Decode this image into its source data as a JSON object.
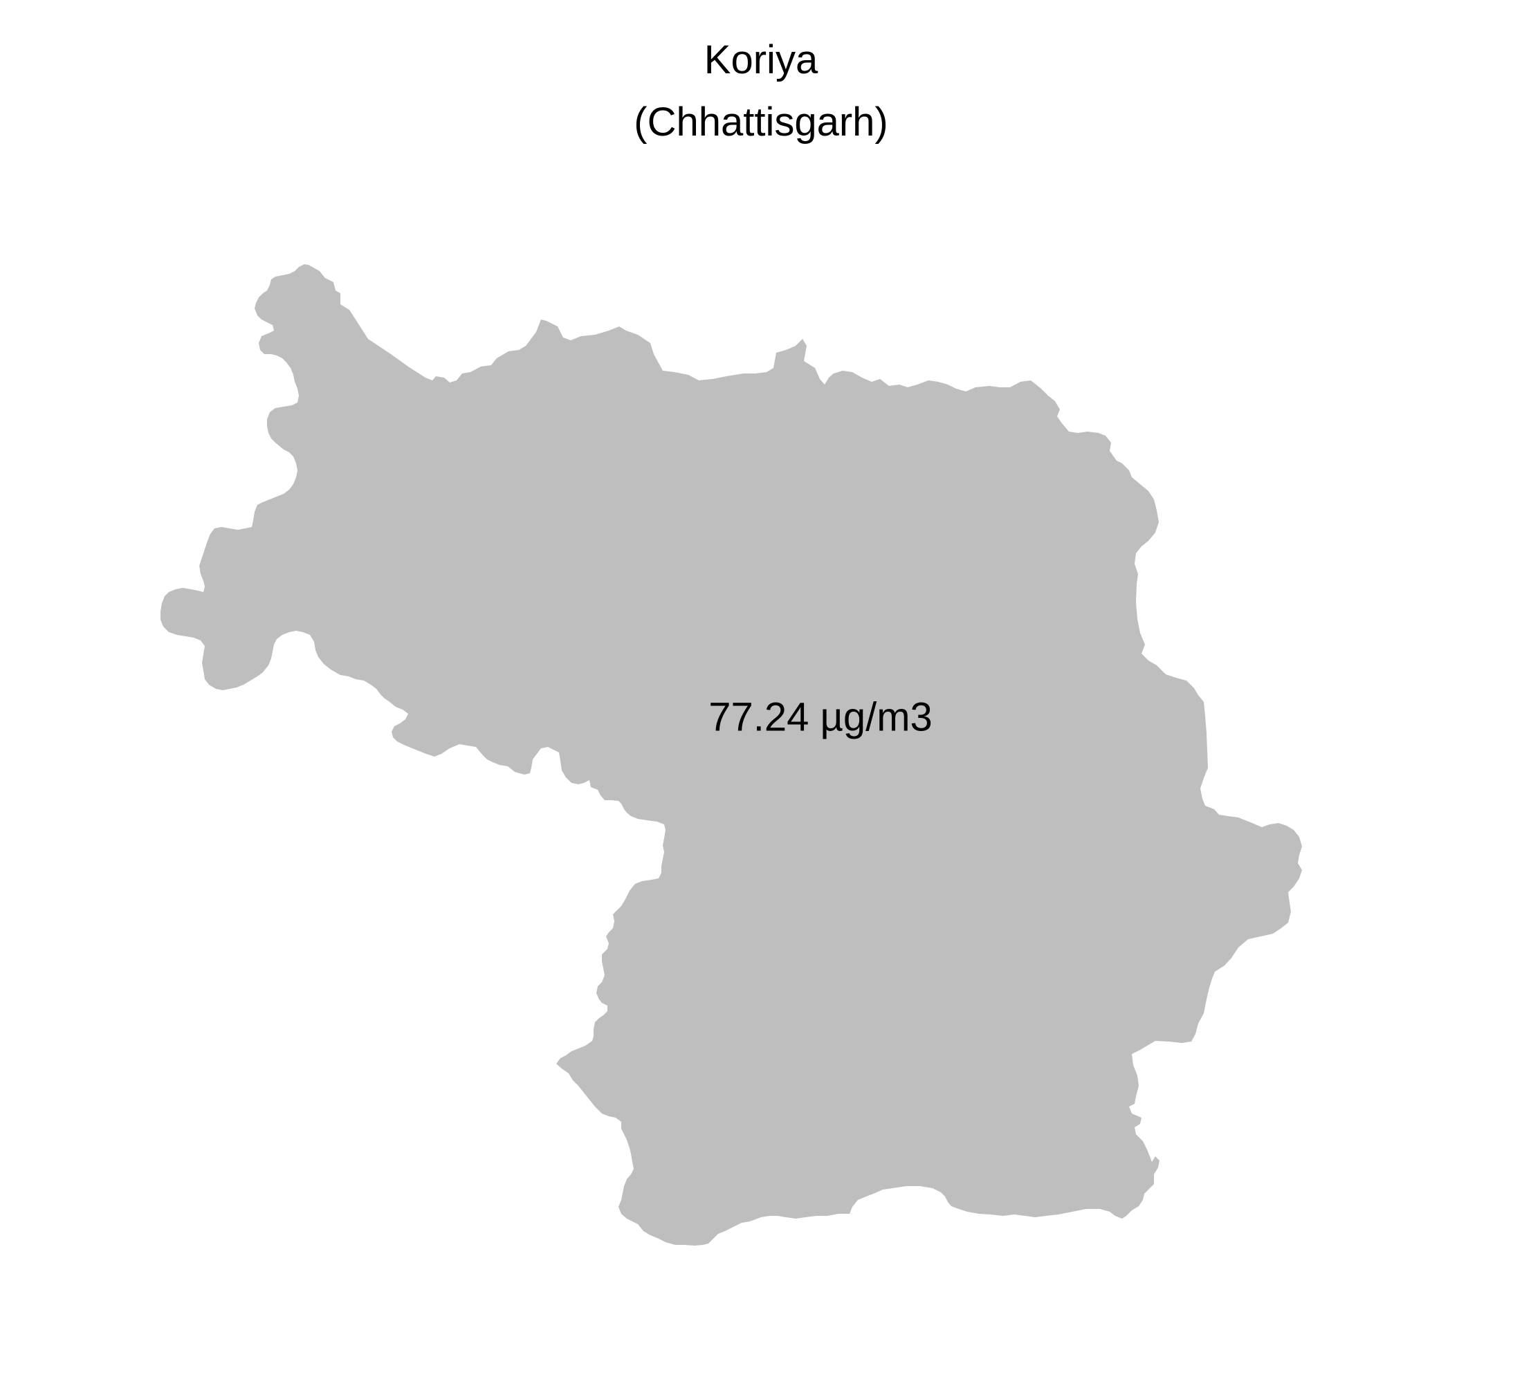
{
  "title": {
    "line1": "Koriya",
    "line2": "(Chhattisgarh)"
  },
  "region": {
    "district": "Koriya",
    "state": "Chhattisgarh",
    "value_label": "77.24 µg/m3",
    "fill_color": "#bebebe"
  },
  "colors": {
    "background": "#ffffff",
    "text": "#000000"
  }
}
